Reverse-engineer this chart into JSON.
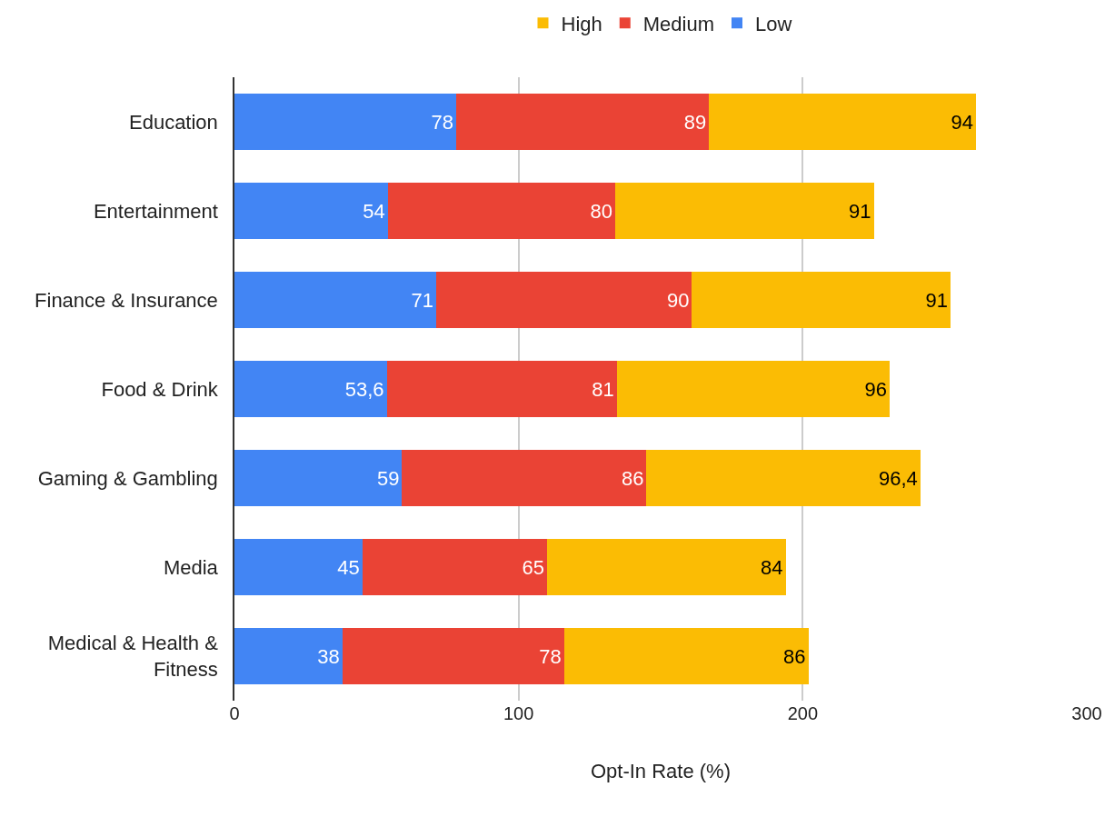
{
  "chart_data": {
    "type": "bar",
    "orientation": "horizontal",
    "stacked": true,
    "xlabel": "Opt-In Rate (%)",
    "categories": [
      "Education",
      "Entertainment",
      "Finance & Insurance",
      "Food & Drink",
      "Gaming & Gambling",
      "Media",
      "Medical & Health & Fitness"
    ],
    "series": [
      {
        "name": "Low",
        "color": "#4285f4",
        "values": [
          78,
          54,
          71,
          53.6,
          59,
          45,
          38
        ],
        "value_labels": [
          "78",
          "54",
          "71",
          "53,6",
          "59",
          "45",
          "38"
        ]
      },
      {
        "name": "Medium",
        "color": "#ea4335",
        "values": [
          89,
          80,
          90,
          81,
          86,
          65,
          78
        ],
        "value_labels": [
          "89",
          "80",
          "90",
          "81",
          "86",
          "65",
          "78"
        ]
      },
      {
        "name": "High",
        "color": "#fbbc04",
        "values": [
          94,
          91,
          91,
          96,
          96.4,
          84,
          86
        ],
        "value_labels": [
          "94",
          "91",
          "91",
          "96",
          "96,4",
          "84",
          "86"
        ]
      }
    ],
    "xlim": [
      0,
      300
    ],
    "xticks": [
      0,
      100,
      200,
      300
    ],
    "grid": "x",
    "legend": "top"
  }
}
